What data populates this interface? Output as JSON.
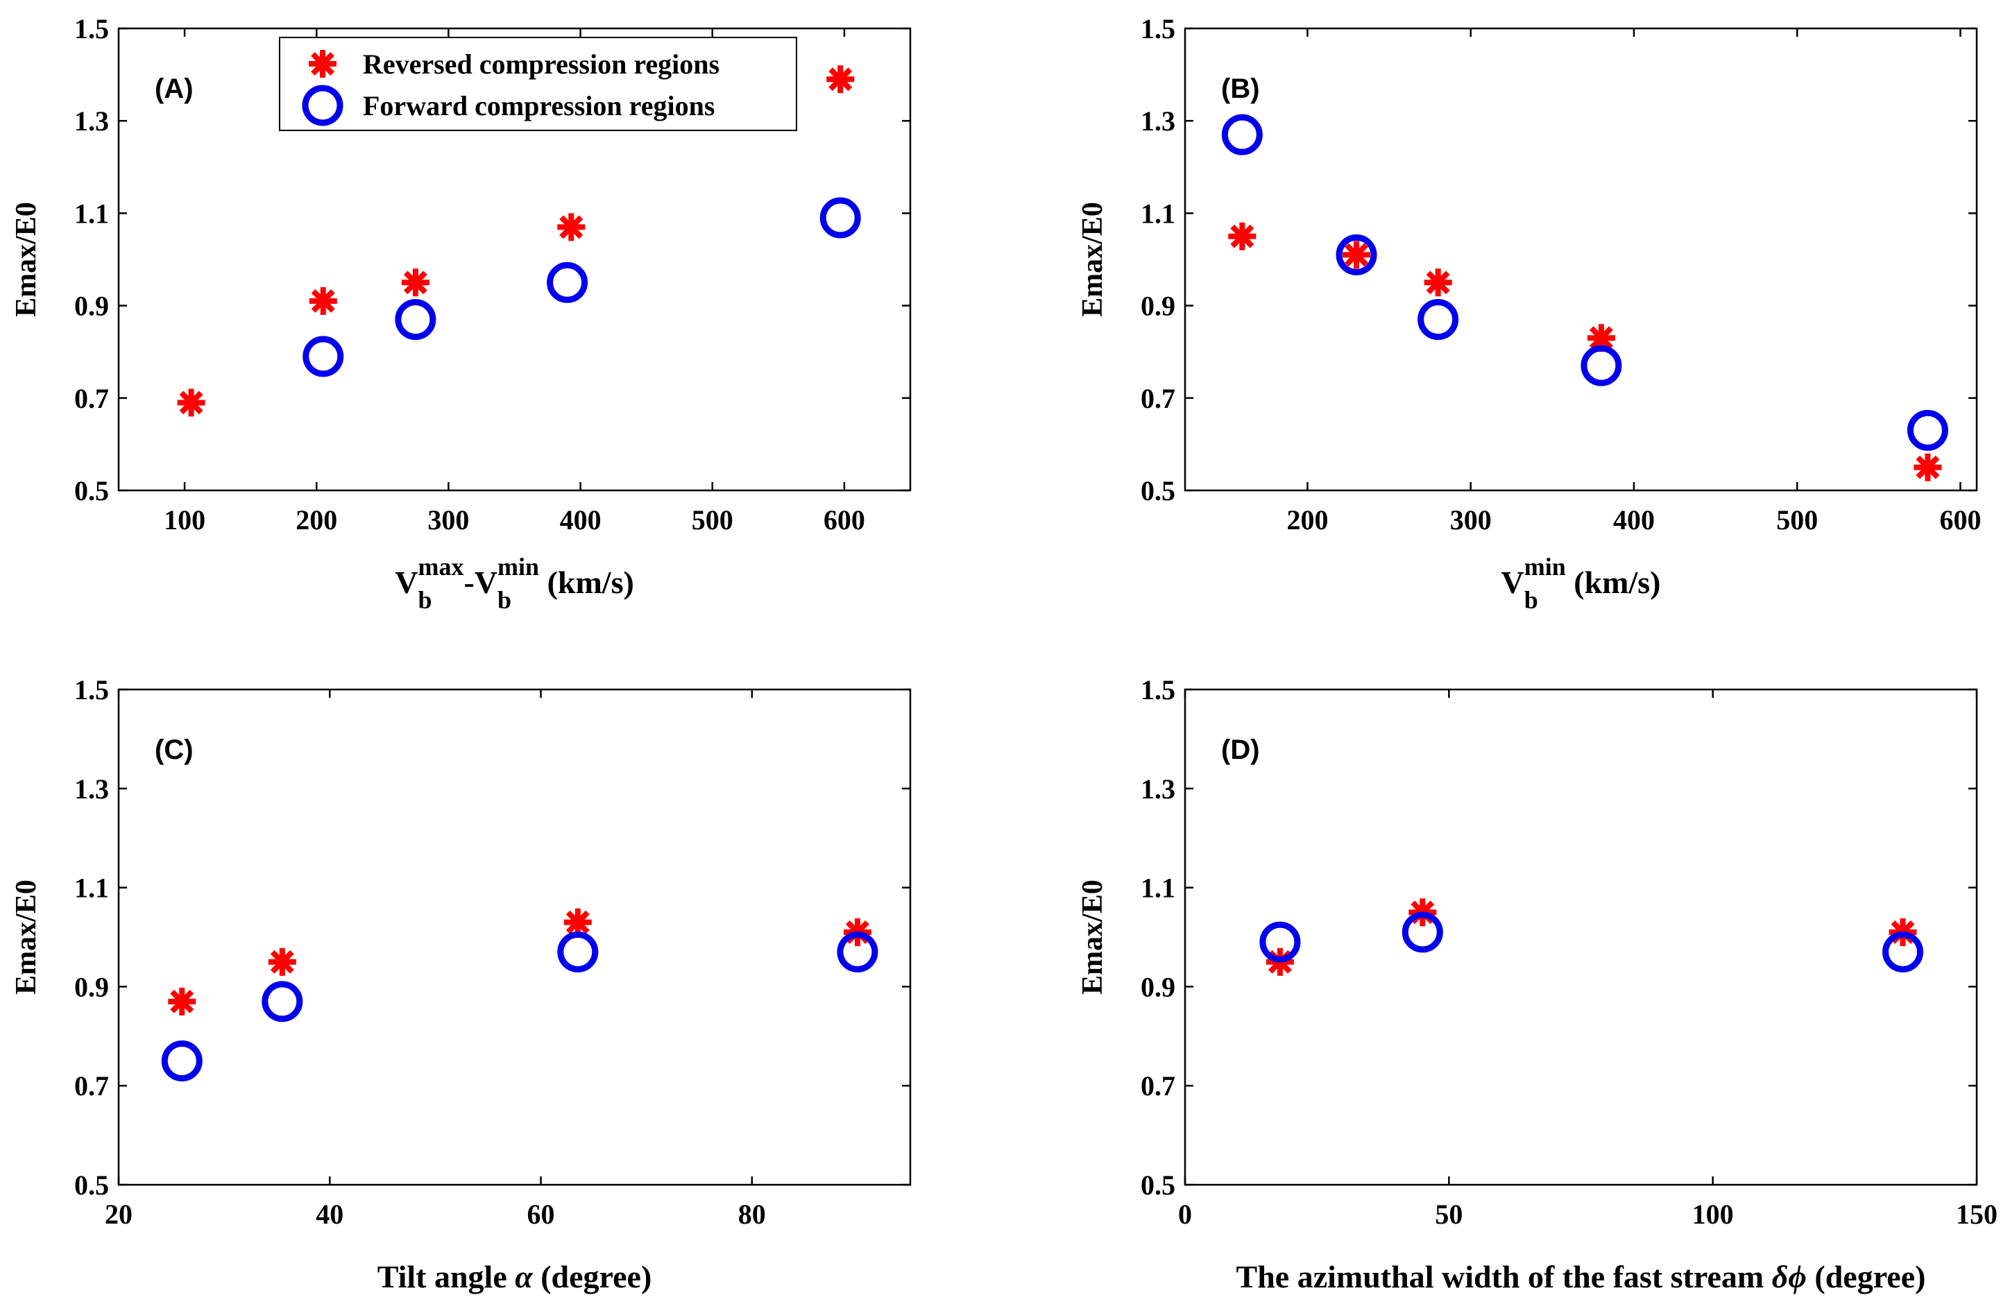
{
  "colors": {
    "reversed": "#ff0000",
    "forward": "#0000ee",
    "axis": "#000000"
  },
  "legend": {
    "items": [
      {
        "label": "Reversed compression regions",
        "marker": "asterisk",
        "color": "#ff0000"
      },
      {
        "label": "Forward compression regions",
        "marker": "circle",
        "color": "#0000ee"
      }
    ],
    "placement": "inside top of panel A"
  },
  "chart_data": [
    {
      "type": "scatter",
      "panel_label": "(A)",
      "xlabel_parts": [
        "V",
        "b",
        "max",
        "-V",
        "b",
        "min",
        " (km/s)"
      ],
      "ylabel": "Emax/E0",
      "xlim": [
        50,
        650
      ],
      "ylim": [
        0.5,
        1.5
      ],
      "xticks": [
        100,
        200,
        300,
        400,
        500,
        600
      ],
      "yticks": [
        0.5,
        0.7,
        0.9,
        1.1,
        1.3,
        1.5
      ],
      "series": [
        {
          "name": "Reversed compression regions",
          "x": [
            105,
            205,
            275,
            393,
            597
          ],
          "y": [
            0.69,
            0.91,
            0.95,
            1.07,
            1.39
          ]
        },
        {
          "name": "Forward compression regions",
          "x": [
            205,
            275,
            390,
            597
          ],
          "y": [
            0.79,
            0.87,
            0.95,
            1.09
          ]
        }
      ]
    },
    {
      "type": "scatter",
      "panel_label": "(B)",
      "xlabel_parts": [
        "V",
        "b",
        "min",
        " (km/s)"
      ],
      "ylabel": "Emax/E0",
      "xlim": [
        125,
        610
      ],
      "ylim": [
        0.5,
        1.5
      ],
      "xticks": [
        200,
        300,
        400,
        500,
        600
      ],
      "yticks": [
        0.5,
        0.7,
        0.9,
        1.1,
        1.3,
        1.5
      ],
      "series": [
        {
          "name": "Reversed compression regions",
          "x": [
            160,
            230,
            280,
            380,
            580
          ],
          "y": [
            1.05,
            1.01,
            0.95,
            0.83,
            0.55
          ]
        },
        {
          "name": "Forward compression regions",
          "x": [
            160,
            230,
            280,
            380,
            580
          ],
          "y": [
            1.27,
            1.01,
            0.87,
            0.77,
            0.63
          ]
        }
      ]
    },
    {
      "type": "scatter",
      "panel_label": "(C)",
      "xlabel_parts": [
        "Tilt angle ",
        "α",
        " (degree)"
      ],
      "ylabel": "Emax/E0",
      "xlim": [
        20,
        95
      ],
      "ylim": [
        0.5,
        1.5
      ],
      "xticks": [
        20,
        40,
        60,
        80
      ],
      "yticks": [
        0.5,
        0.7,
        0.9,
        1.1,
        1.3,
        1.5
      ],
      "series": [
        {
          "name": "Reversed compression regions",
          "x": [
            26,
            35.5,
            63.5,
            90
          ],
          "y": [
            0.87,
            0.95,
            1.03,
            1.01
          ]
        },
        {
          "name": "Forward compression regions",
          "x": [
            26,
            35.5,
            63.5,
            90
          ],
          "y": [
            0.75,
            0.87,
            0.97,
            0.97
          ]
        }
      ]
    },
    {
      "type": "scatter",
      "panel_label": "(D)",
      "xlabel_parts": [
        "The azimuthal width of the fast stream ",
        "δϕ",
        " (degree)"
      ],
      "ylabel": "Emax/E0",
      "xlim": [
        0,
        150
      ],
      "ylim": [
        0.5,
        1.5
      ],
      "xticks": [
        0,
        50,
        100,
        150
      ],
      "yticks": [
        0.5,
        0.7,
        0.9,
        1.1,
        1.3,
        1.5
      ],
      "series": [
        {
          "name": "Reversed compression regions",
          "x": [
            18,
            45,
            136
          ],
          "y": [
            0.95,
            1.05,
            1.01
          ]
        },
        {
          "name": "Forward compression regions",
          "x": [
            18,
            45,
            136
          ],
          "y": [
            0.99,
            1.01,
            0.97
          ]
        }
      ]
    }
  ]
}
